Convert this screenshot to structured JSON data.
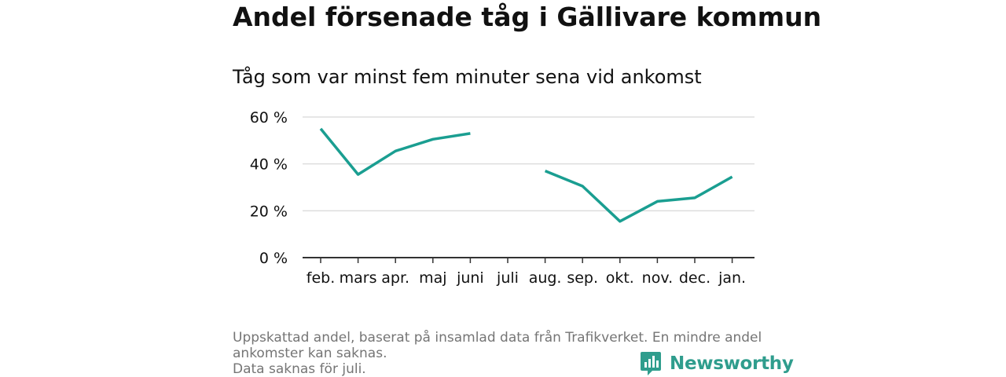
{
  "title": "Andel försenade tåg i Gällivare kommun",
  "subtitle": "Tåg som var minst fem minuter sena vid ankomst",
  "footnote": {
    "line1": "Uppskattad andel, baserat på insamlad data från Trafikverket. En mindre andel",
    "line2": "ankomster kan saknas.",
    "line3": "Data saknas för juli."
  },
  "brand": {
    "name": "Newsworthy",
    "icon": "newsworthy-logo-icon",
    "color": "#2f9d8d"
  },
  "colors": {
    "line": "#1a9e91",
    "grid": "#dddddd",
    "axis": "#333333"
  },
  "chart_data": {
    "type": "line",
    "categories": [
      "feb.",
      "mars",
      "apr.",
      "maj",
      "juni",
      "juli",
      "aug.",
      "sep.",
      "okt.",
      "nov.",
      "dec.",
      "jan."
    ],
    "values": [
      55,
      35.5,
      45.5,
      50.5,
      53,
      null,
      37,
      30.5,
      15.5,
      24,
      25.5,
      34.5
    ],
    "ylim": [
      0,
      60
    ],
    "yticks": [
      0,
      20,
      40,
      60
    ],
    "ytick_labels": [
      "0 %",
      "20 %",
      "40 %",
      "60 %"
    ],
    "grid": true,
    "legend": false
  }
}
